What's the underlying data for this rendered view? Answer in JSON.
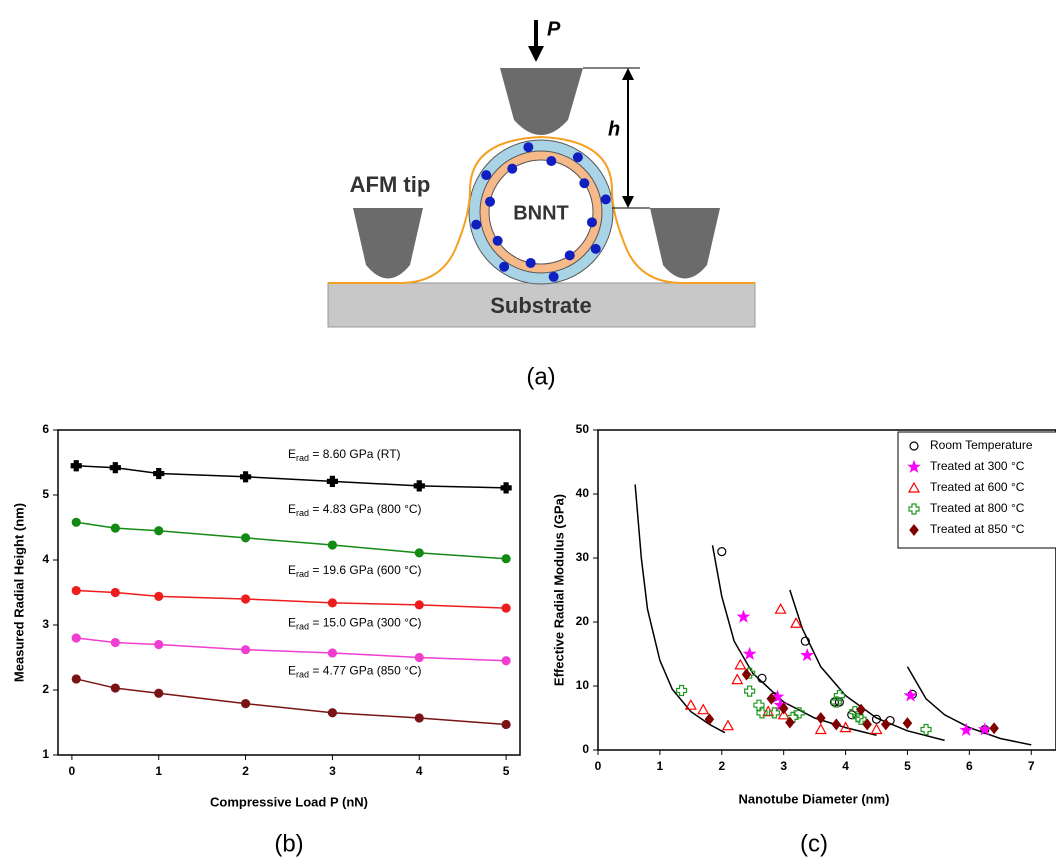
{
  "diagram": {
    "labels": {
      "force": "P",
      "height": "h",
      "tip": "AFM tip",
      "tube": "BNNT",
      "substrate": "Substrate"
    },
    "panel": "(a)"
  },
  "chart_data": [
    {
      "type": "line",
      "panel": "(b)",
      "ylabel": "Measured Radial Height (nm)",
      "xlabel": "Compressive Load P (nN)",
      "x": [
        0.05,
        0.5,
        1,
        2,
        3,
        4,
        5
      ],
      "xlim": [
        -0.16,
        5.16
      ],
      "xticks": [
        0,
        1,
        2,
        3,
        4,
        5
      ],
      "ylim": [
        1,
        6
      ],
      "yticks": [
        1,
        2,
        3,
        4,
        5,
        6
      ],
      "series": [
        {
          "color": "#000000",
          "marker": "plus-filled",
          "values": [
            5.45,
            5.42,
            5.33,
            5.28,
            5.21,
            5.14,
            5.11
          ]
        },
        {
          "color": "#138a13",
          "marker": "circle-filled",
          "values": [
            4.58,
            4.49,
            4.45,
            4.34,
            4.23,
            4.11,
            4.02
          ]
        },
        {
          "color": "#ee1c1c",
          "marker": "circle-filled",
          "values": [
            3.53,
            3.5,
            3.44,
            3.4,
            3.34,
            3.31,
            3.26
          ]
        },
        {
          "color": "#f03ed0",
          "marker": "circle-filled",
          "values": [
            2.8,
            2.73,
            2.7,
            2.62,
            2.57,
            2.5,
            2.45
          ]
        },
        {
          "color": "#7a1414",
          "marker": "circle-filled",
          "values": [
            2.17,
            2.03,
            1.95,
            1.79,
            1.65,
            1.57,
            1.47
          ]
        }
      ],
      "annotations": [
        {
          "text": "E",
          "sub": "rad",
          "rest": " = 8.60 GPa (RT)"
        },
        {
          "text": "E",
          "sub": "rad",
          "rest": " = 4.83 GPa (800 °C)"
        },
        {
          "text": "E",
          "sub": "rad",
          "rest": " = 19.6 GPa (600 °C)"
        },
        {
          "text": "E",
          "sub": "rad",
          "rest": " = 15.0 GPa (300 °C)"
        },
        {
          "text": "E",
          "sub": "rad",
          "rest": " = 4.77 GPa (850 °C)"
        }
      ]
    },
    {
      "type": "scatter",
      "panel": "(c)",
      "ylabel": "Effective Radial Modulus (GPa)",
      "xlabel": "Nanotube Diameter (nm)",
      "xlim": [
        0,
        7.4
      ],
      "xticks": [
        0,
        1,
        2,
        3,
        4,
        5,
        6,
        7
      ],
      "ylim": [
        0,
        50
      ],
      "yticks": [
        0,
        10,
        20,
        30,
        40,
        50
      ],
      "series": [
        {
          "name": "Room Temperature",
          "color": "#000000",
          "marker": "circle",
          "x": [
            2.0,
            2.65,
            2.85,
            3.35,
            3.82,
            3.9,
            4.1,
            4.5,
            4.72,
            5.08,
            6.25
          ],
          "values": [
            31,
            11.2,
            8.3,
            17,
            7.5,
            7.5,
            5.5,
            4.8,
            4.6,
            8.7,
            3.2
          ]
        },
        {
          "name": "Treated at 300 °C",
          "color": "#ff00ff",
          "marker": "star",
          "x": [
            2.35,
            2.45,
            2.9,
            3.38,
            5.05,
            5.95,
            6.25,
            2.95
          ],
          "values": [
            20.8,
            15,
            8.3,
            14.8,
            8.5,
            3.1,
            3.2,
            7
          ]
        },
        {
          "name": "Treated at 600 °C",
          "color": "#ff0000",
          "marker": "triangle",
          "x": [
            1.5,
            1.7,
            2.1,
            2.25,
            2.3,
            2.95,
            3.2,
            3.0,
            3.6,
            4.0,
            4.5,
            2.75
          ],
          "values": [
            7,
            6.3,
            3.8,
            11,
            13.3,
            22,
            19.8,
            5.5,
            3.2,
            3.5,
            3.2,
            6
          ]
        },
        {
          "name": "Treated at 800 °C",
          "color": "#229922",
          "marker": "plus",
          "x": [
            1.35,
            2.45,
            2.6,
            2.65,
            2.85,
            3.15,
            3.25,
            3.9,
            3.85,
            4.15,
            4.2,
            4.25,
            5.3,
            2.45
          ],
          "values": [
            9.3,
            9.2,
            7,
            5.8,
            5.8,
            5.1,
            5.8,
            8.5,
            7.5,
            6,
            5.2,
            4.8,
            3.2,
            12
          ]
        },
        {
          "name": "Treated at 850 °C",
          "color": "#800000",
          "marker": "diamond",
          "x": [
            1.8,
            2.4,
            3.0,
            3.1,
            3.6,
            3.85,
            4.25,
            4.35,
            4.65,
            5.0,
            6.4,
            2.8
          ],
          "values": [
            4.8,
            11.8,
            6.5,
            4.3,
            5,
            4,
            6.3,
            4,
            4,
            4.2,
            3.4,
            8
          ]
        }
      ],
      "curves": [
        {
          "color": "#000000",
          "x": [
            0.6,
            0.7,
            0.8,
            1.0,
            1.2,
            1.5,
            1.8,
            2.05
          ],
          "values": [
            41.5,
            30,
            22,
            14,
            9.5,
            6,
            4,
            2.7
          ]
        },
        {
          "color": "#000000",
          "x": [
            1.85,
            2.0,
            2.2,
            2.5,
            3.0,
            3.5,
            4.0,
            4.5
          ],
          "values": [
            32,
            24,
            17,
            12,
            7.5,
            5,
            3.5,
            2.3
          ]
        },
        {
          "color": "#000000",
          "x": [
            3.1,
            3.3,
            3.6,
            4.0,
            4.5,
            5.0,
            5.6
          ],
          "values": [
            25,
            19,
            13,
            8.5,
            5,
            3,
            1.5
          ]
        },
        {
          "color": "#000000",
          "x": [
            5.0,
            5.3,
            5.6,
            6.0,
            6.5,
            7.0
          ],
          "values": [
            13,
            8,
            5.5,
            3.5,
            1.8,
            0.8
          ]
        }
      ]
    }
  ]
}
